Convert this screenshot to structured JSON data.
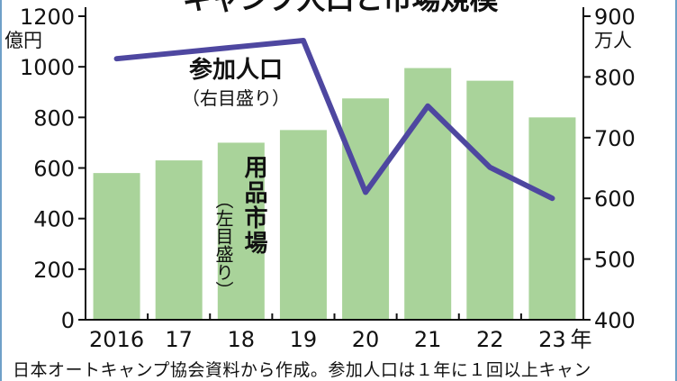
{
  "chart_data": {
    "type": "bar",
    "title": "キャンプ人口と市場規模",
    "categories": [
      "2016",
      "17",
      "18",
      "19",
      "20",
      "21",
      "22",
      "23"
    ],
    "x_unit": "年",
    "series": [
      {
        "name": "用品市場",
        "name_note": "（左目盛り）",
        "type": "bar",
        "axis": "left",
        "color": "#a9d39a",
        "values": [
          580,
          630,
          700,
          750,
          875,
          995,
          945,
          800
        ]
      },
      {
        "name": "参加人口",
        "name_note": "（右目盛り）",
        "type": "line",
        "axis": "right",
        "color": "#4e47a0",
        "values": [
          830,
          840,
          850,
          860,
          610,
          752,
          651,
          600
        ]
      }
    ],
    "y_left": {
      "unit": "億円",
      "ticks": [
        0,
        200,
        400,
        600,
        800,
        1000,
        1200
      ],
      "ylim": [
        0,
        1200
      ]
    },
    "y_right": {
      "unit": "万人",
      "ticks": [
        400,
        500,
        600,
        700,
        800,
        900
      ],
      "ylim": [
        400,
        900
      ]
    },
    "grid": false
  },
  "footnote": "日本オートキャンプ協会資料から作成。参加人口は１年に１回以上キャン"
}
